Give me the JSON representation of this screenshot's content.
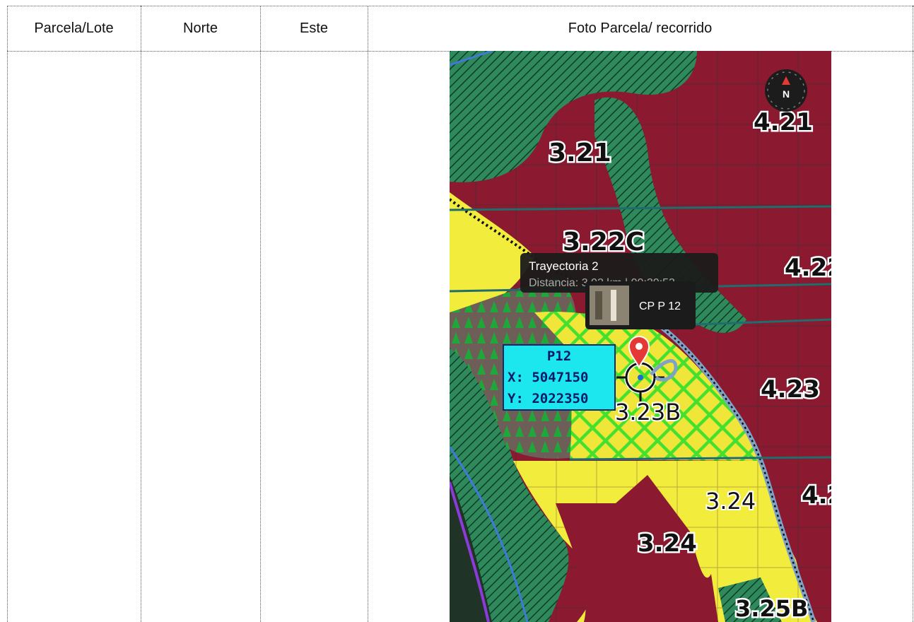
{
  "table": {
    "headers": [
      "Parcela/Lote",
      "Norte",
      "Este",
      "Foto Parcela/ recorrido"
    ],
    "row": {
      "parcela": "",
      "norte": "",
      "este": ""
    }
  },
  "map": {
    "compass_label": "N",
    "stand_labels": {
      "l321": "3.21",
      "l421": "4.21",
      "l322c": "3.22C",
      "l422": "4.22",
      "l323b": "3.23B",
      "l423": "4.23",
      "l324a": "3.24",
      "l324b": "3.24",
      "l42x": "4.2",
      "l325b": "3.25B"
    },
    "track_tooltip": {
      "title": "Trayectoria 2",
      "subtitle": "Distancia: 3.02 km | 00:20:53"
    },
    "photo_marker": {
      "label": "CP P 12"
    },
    "point_box": {
      "name": "P12",
      "x_line": "X: 5047150",
      "y_line": "Y: 2022350"
    },
    "colors": {
      "stand_red": "#8b1a30",
      "forest_green": "#2e8b57",
      "yellow": "#f2ec3c",
      "lime": "#7ee03a",
      "cyan_box": "#1de7ee",
      "pin_red": "#e53935"
    }
  }
}
